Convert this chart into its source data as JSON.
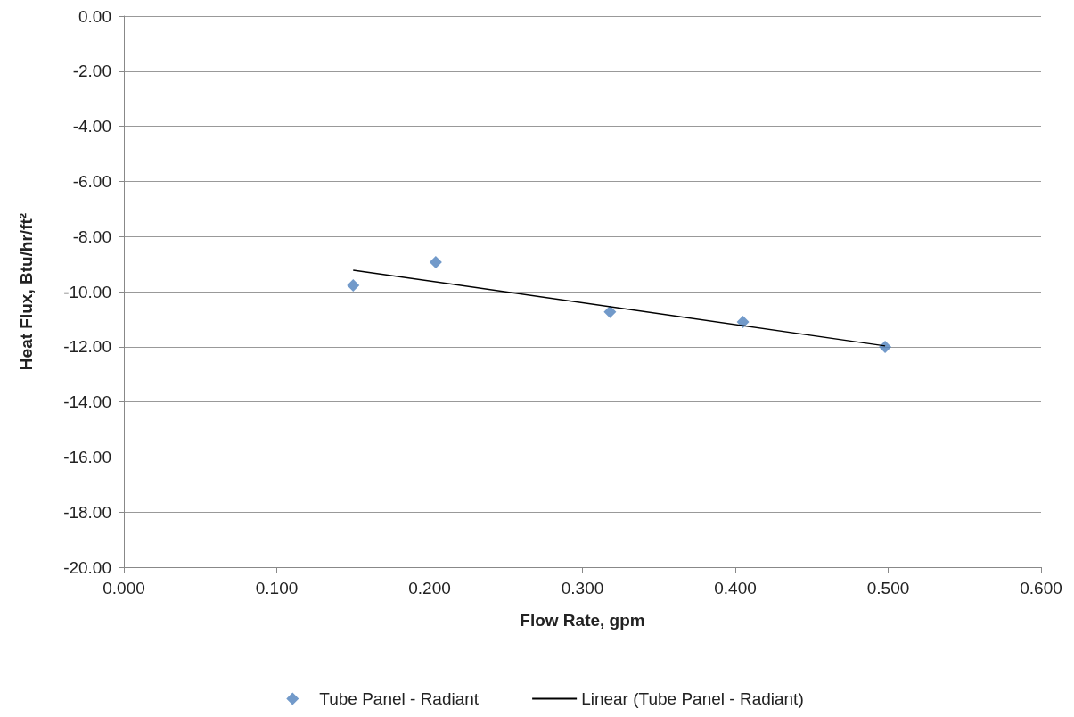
{
  "chart_data": {
    "type": "scatter",
    "xlabel": "Flow Rate, gpm",
    "ylabel": "Heat Flux, Btu/hr/ft²",
    "xlim": [
      0,
      0.6
    ],
    "xticks": [
      {
        "value": 0,
        "label": "0.000"
      },
      {
        "value": 0.1,
        "label": "0.100"
      },
      {
        "value": 0.2,
        "label": "0.200"
      },
      {
        "value": 0.3,
        "label": "0.300"
      },
      {
        "value": 0.4,
        "label": "0.400"
      },
      {
        "value": 0.5,
        "label": "0.500"
      },
      {
        "value": 0.6,
        "label": "0.600"
      }
    ],
    "ylim": [
      -20,
      0
    ],
    "yticks": [
      {
        "value": -20,
        "label": "-20.00"
      },
      {
        "value": -18,
        "label": "-18.00"
      },
      {
        "value": -16,
        "label": "-16.00"
      },
      {
        "value": -14,
        "label": "-14.00"
      },
      {
        "value": -12,
        "label": "-12.00"
      },
      {
        "value": -10,
        "label": "-10.00"
      },
      {
        "value": -8,
        "label": "-8.00"
      },
      {
        "value": -6,
        "label": "-6.00"
      },
      {
        "value": -4,
        "label": "-4.00"
      },
      {
        "value": -2,
        "label": "-2.00"
      },
      {
        "value": 0,
        "label": "0.00"
      }
    ],
    "grid": "y",
    "legend": "bottom",
    "series": [
      {
        "name": "Tube Panel - Radiant",
        "marker": "diamond",
        "color": "#4f81bd",
        "x": [
          0.15,
          0.204,
          0.318,
          0.405,
          0.498
        ],
        "values": [
          -9.77,
          -8.93,
          -10.74,
          -11.1,
          -12.01
        ]
      },
      {
        "name": "Linear (Tube Panel - Radiant)",
        "type": "line",
        "marker": "none",
        "line_style": "solid",
        "color": "#000000",
        "x": [
          0.15,
          0.498
        ],
        "values": [
          -9.22,
          -11.97
        ]
      }
    ]
  }
}
